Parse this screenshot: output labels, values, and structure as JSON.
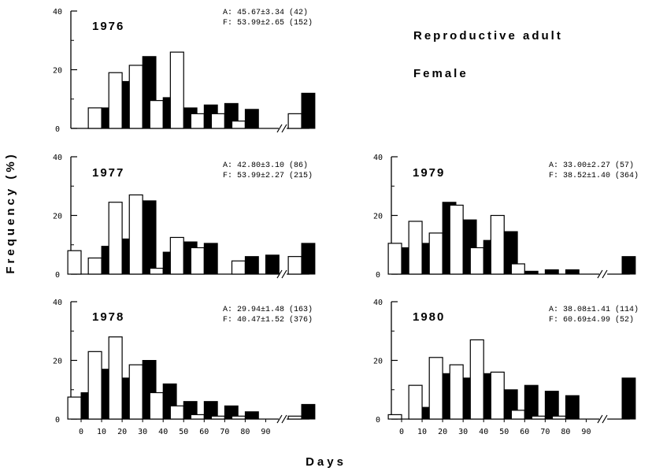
{
  "figure": {
    "y_axis_label": "Frequency (%)",
    "x_axis_label": "Days",
    "title": "Reproductive adult",
    "subtitle": "Female",
    "x_ticks": [
      "0",
      "10",
      "20",
      "30",
      "40",
      "50",
      "60",
      "70",
      "80",
      "90"
    ]
  },
  "chart_data": [
    {
      "type": "bar",
      "year": "1976",
      "stat_A": "A: 45.67±3.34 (42)",
      "stat_F": "F: 53.99±2.65 (152)",
      "ylim": [
        0,
        40
      ],
      "y_ticks": [
        "0",
        "20",
        "40"
      ],
      "categories": [
        "0",
        "10",
        "20",
        "30",
        "40",
        "50",
        "60",
        "70",
        "80",
        "90",
        ">90"
      ],
      "series": [
        {
          "name": "A",
          "fill": "white",
          "values": [
            0,
            7,
            19,
            21.5,
            9.5,
            26,
            5,
            5,
            2.5,
            0,
            5
          ]
        },
        {
          "name": "F",
          "fill": "black",
          "values": [
            0,
            7,
            16,
            24.5,
            10.5,
            7,
            8,
            8.5,
            6.5,
            0,
            12
          ]
        }
      ]
    },
    {
      "type": "bar",
      "year": "1977",
      "stat_A": "A: 42.80±3.10 (86)",
      "stat_F": "F: 53.99±2.27 (215)",
      "ylim": [
        0,
        40
      ],
      "y_ticks": [
        "0",
        "20",
        "40"
      ],
      "categories": [
        "0",
        "10",
        "20",
        "30",
        "40",
        "50",
        "60",
        "70",
        "80",
        "90",
        ">90"
      ],
      "series": [
        {
          "name": "A",
          "fill": "white",
          "values": [
            8,
            5.5,
            24.5,
            27,
            2,
            12.5,
            9,
            0,
            4.5,
            0,
            6
          ]
        },
        {
          "name": "F",
          "fill": "black",
          "values": [
            0,
            9.5,
            12,
            25,
            7.5,
            11,
            10.5,
            0,
            6,
            6.5,
            10.5
          ]
        }
      ]
    },
    {
      "type": "bar",
      "year": "1978",
      "stat_A": "A: 29.94±1.48 (163)",
      "stat_F": "F: 40.47±1.52 (376)",
      "ylim": [
        0,
        40
      ],
      "y_ticks": [
        "0",
        "20",
        "40"
      ],
      "categories": [
        "0",
        "10",
        "20",
        "30",
        "40",
        "50",
        "60",
        "70",
        "80",
        "90",
        ">90"
      ],
      "series": [
        {
          "name": "A",
          "fill": "white",
          "values": [
            7.5,
            23,
            28,
            18.5,
            9,
            4.5,
            1.5,
            1,
            1,
            0,
            1
          ]
        },
        {
          "name": "F",
          "fill": "black",
          "values": [
            9,
            17,
            14,
            20,
            12,
            6,
            6,
            4.5,
            2.5,
            0,
            5
          ]
        }
      ]
    },
    {
      "type": "bar",
      "year": "1979",
      "stat_A": "A: 33.00±2.27 (57)",
      "stat_F": "F: 38.52±1.40 (364)",
      "ylim": [
        0,
        40
      ],
      "y_ticks": [
        "0",
        "20",
        "40"
      ],
      "categories": [
        "0",
        "10",
        "20",
        "30",
        "40",
        "50",
        "60",
        "70",
        "80",
        "90",
        ">90"
      ],
      "series": [
        {
          "name": "A",
          "fill": "white",
          "values": [
            10.5,
            18,
            14,
            23.5,
            9,
            20,
            3.5,
            0,
            0,
            0,
            0
          ]
        },
        {
          "name": "F",
          "fill": "black",
          "values": [
            9,
            10.5,
            24.5,
            18.5,
            11.5,
            14.5,
            1,
            1.5,
            1.5,
            0,
            6
          ]
        }
      ]
    },
    {
      "type": "bar",
      "year": "1980",
      "stat_A": "A: 38.08±1.41 (114)",
      "stat_F": "F: 60.69±4.99 (52)",
      "ylim": [
        0,
        40
      ],
      "y_ticks": [
        "0",
        "20",
        "40"
      ],
      "categories": [
        "0",
        "10",
        "20",
        "30",
        "40",
        "50",
        "60",
        "70",
        "80",
        "90",
        ">90"
      ],
      "series": [
        {
          "name": "A",
          "fill": "white",
          "values": [
            1.5,
            11.5,
            21,
            18.5,
            27,
            16,
            3,
            1,
            1,
            0,
            0
          ]
        },
        {
          "name": "F",
          "fill": "black",
          "values": [
            0,
            4,
            15.5,
            14,
            15.5,
            10,
            11.5,
            9.5,
            8,
            0,
            14
          ]
        }
      ]
    }
  ]
}
